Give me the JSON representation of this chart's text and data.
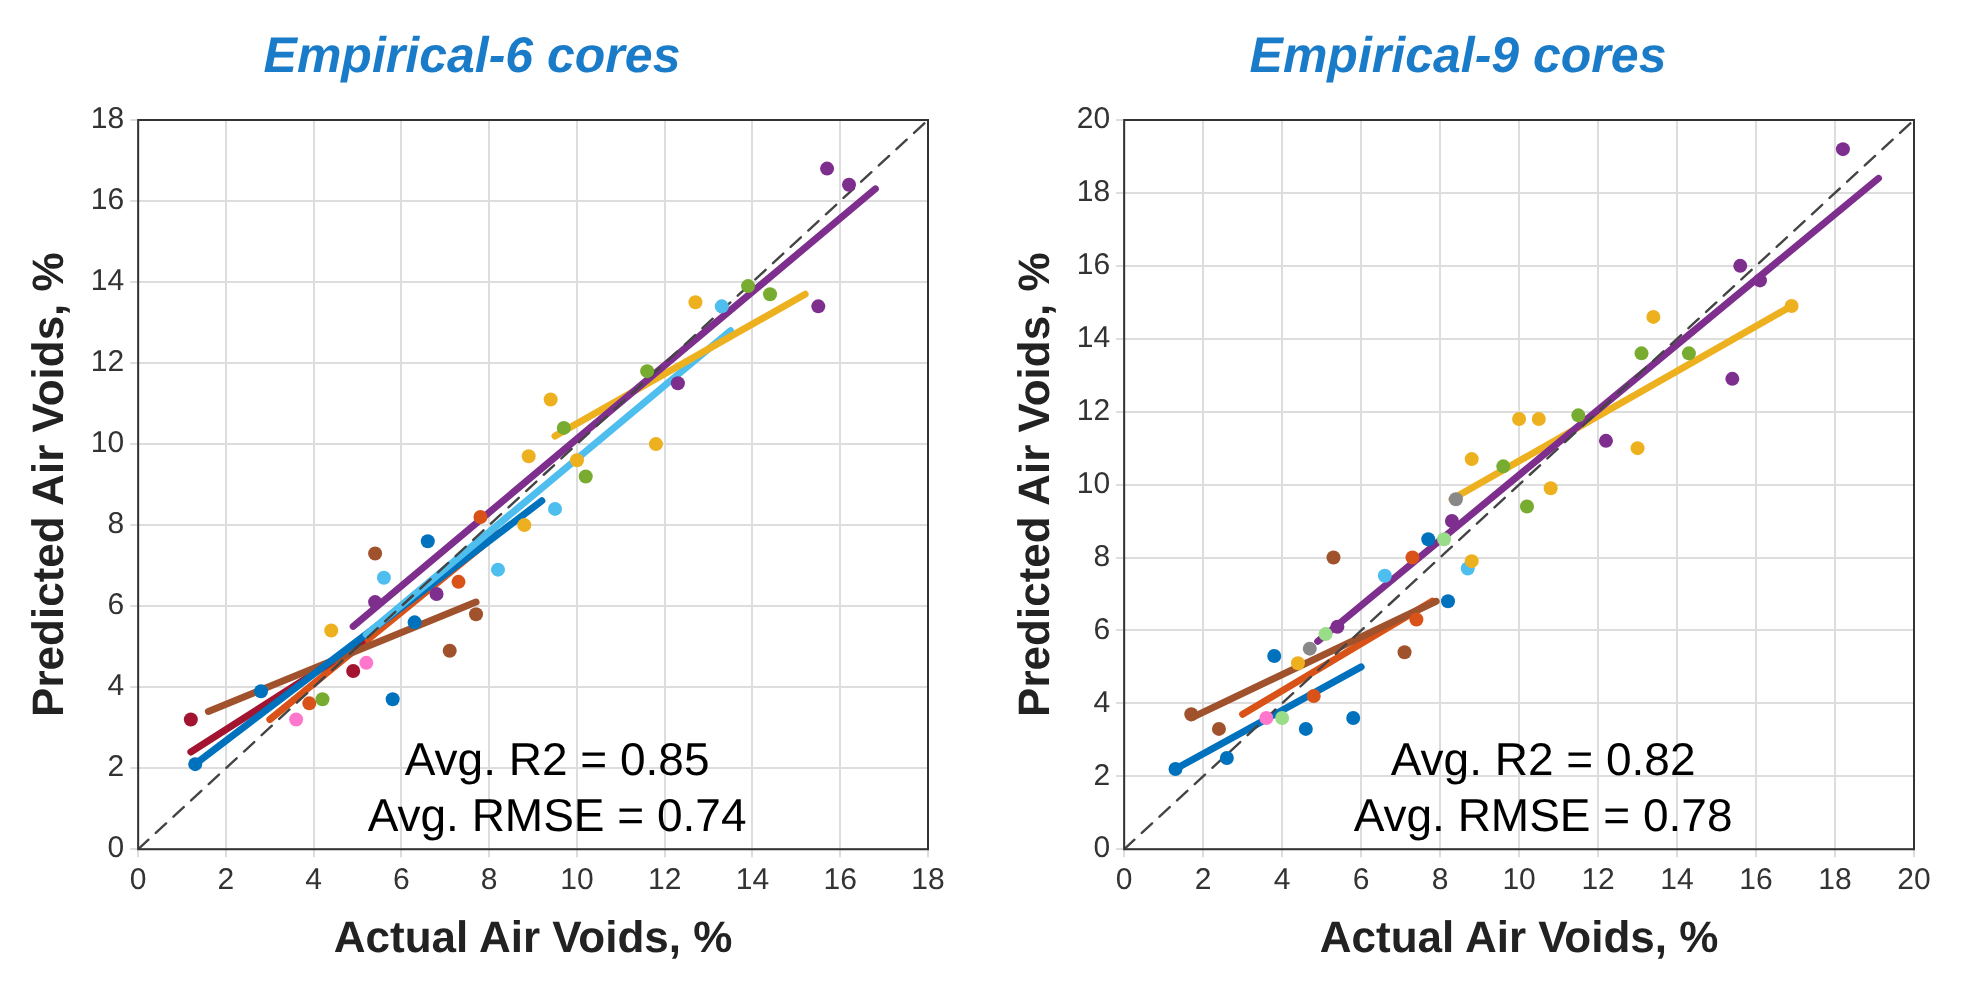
{
  "chart_data": [
    {
      "type": "scatter",
      "title": "Empirical-6 cores",
      "xlabel": "Actual Air Voids, %",
      "ylabel": "Predicted Air Voids, %",
      "xlim": [
        0,
        18
      ],
      "ylim": [
        0,
        18
      ],
      "xticks": [
        0,
        2,
        4,
        6,
        8,
        10,
        12,
        14,
        16,
        18
      ],
      "yticks": [
        0,
        2,
        4,
        6,
        8,
        10,
        12,
        14,
        16,
        18
      ],
      "grid": true,
      "marker": "circle",
      "legend": false,
      "annotations": [
        "Avg. R2 = 0.85",
        "Avg. RMSE = 0.74"
      ],
      "series": [
        {
          "type": "line",
          "color": "#444444",
          "line_style": "dashed",
          "marker": "none",
          "x": [
            0,
            18
          ],
          "values": [
            0,
            18
          ]
        },
        {
          "color": "#7e2f8e",
          "x": [
            15.7,
            16.2,
            15.5,
            12.3,
            6.8,
            5.4
          ],
          "values": [
            16.8,
            16.4,
            13.4,
            11.5,
            6.3,
            6.1
          ]
        },
        {
          "type": "line",
          "color": "#7e2f8e",
          "marker": "none",
          "x": [
            4.9,
            16.8
          ],
          "values": [
            5.5,
            16.3
          ]
        },
        {
          "color": "#edb120",
          "x": [
            12.7,
            9.4,
            8.9,
            11.8,
            8.8,
            4.4,
            10.0
          ],
          "values": [
            13.5,
            11.1,
            9.7,
            10.0,
            8.0,
            5.4,
            9.6
          ]
        },
        {
          "type": "line",
          "color": "#edb120",
          "marker": "none",
          "x": [
            9.5,
            15.2
          ],
          "values": [
            10.2,
            13.7
          ]
        },
        {
          "color": "#77ac30",
          "x": [
            9.7,
            10.2,
            11.6,
            13.9,
            14.4,
            4.2
          ],
          "values": [
            10.4,
            9.2,
            11.8,
            13.9,
            13.7,
            3.7
          ]
        },
        {
          "color": "#4dbeee",
          "x": [
            13.3,
            9.5,
            8.2,
            5.6
          ],
          "values": [
            13.4,
            8.4,
            6.9,
            6.7
          ]
        },
        {
          "type": "line",
          "color": "#4dbeee",
          "marker": "none",
          "x": [
            5.2,
            13.5
          ],
          "values": [
            5.3,
            12.8
          ]
        },
        {
          "color": "#0072bd",
          "x": [
            6.6,
            5.8,
            2.8,
            1.3,
            6.3
          ],
          "values": [
            7.6,
            3.7,
            3.9,
            2.1,
            5.6
          ]
        },
        {
          "type": "line",
          "color": "#0072bd",
          "marker": "none",
          "x": [
            1.3,
            9.2
          ],
          "values": [
            2.1,
            8.6
          ]
        },
        {
          "color": "#a0522d",
          "x": [
            5.4,
            7.1,
            7.7
          ],
          "values": [
            7.3,
            4.9,
            5.8
          ]
        },
        {
          "type": "line",
          "color": "#a0522d",
          "marker": "none",
          "x": [
            1.6,
            7.7
          ],
          "values": [
            3.4,
            6.1
          ]
        },
        {
          "color": "#a2142f",
          "x": [
            1.2,
            4.9
          ],
          "values": [
            3.2,
            4.4
          ]
        },
        {
          "type": "line",
          "color": "#a2142f",
          "marker": "none",
          "x": [
            1.2,
            5.1
          ],
          "values": [
            2.4,
            5.1
          ]
        },
        {
          "color": "#d95319",
          "x": [
            7.8,
            7.3,
            3.9
          ],
          "values": [
            8.2,
            6.6,
            3.6
          ]
        },
        {
          "type": "line",
          "color": "#d95319",
          "marker": "none",
          "x": [
            3.0,
            8.2
          ],
          "values": [
            3.2,
            7.8
          ]
        },
        {
          "color": "#ff77cc",
          "x": [
            3.6,
            5.2
          ],
          "values": [
            3.2,
            4.6
          ]
        }
      ]
    },
    {
      "type": "scatter",
      "title": "Empirical-9 cores",
      "xlabel": "Actual Air Voids, %",
      "ylabel": "Predicted Air Voids, %",
      "xlim": [
        0,
        20
      ],
      "ylim": [
        0,
        20
      ],
      "xticks": [
        0,
        2,
        4,
        6,
        8,
        10,
        12,
        14,
        16,
        18,
        20
      ],
      "yticks": [
        0,
        2,
        4,
        6,
        8,
        10,
        12,
        14,
        16,
        18,
        20
      ],
      "grid": true,
      "marker": "circle",
      "legend": false,
      "annotations": [
        "Avg. R2 = 0.82",
        "Avg. RMSE = 0.78"
      ],
      "series": [
        {
          "type": "line",
          "color": "#444444",
          "line_style": "dashed",
          "marker": "none",
          "x": [
            0,
            20
          ],
          "values": [
            0,
            20
          ]
        },
        {
          "color": "#7e2f8e",
          "x": [
            18.2,
            15.6,
            16.1,
            15.4,
            12.2,
            8.3,
            5.4
          ],
          "values": [
            19.2,
            16.0,
            15.6,
            12.9,
            11.2,
            9.0,
            6.1
          ]
        },
        {
          "type": "line",
          "color": "#7e2f8e",
          "marker": "none",
          "x": [
            4.9,
            19.1
          ],
          "values": [
            5.7,
            18.4
          ]
        },
        {
          "color": "#edb120",
          "x": [
            13.4,
            16.9,
            13.0,
            10.0,
            10.5,
            8.8,
            10.8,
            8.8,
            4.4
          ],
          "values": [
            14.6,
            14.9,
            11.0,
            11.8,
            11.8,
            10.7,
            9.9,
            7.9,
            5.1
          ]
        },
        {
          "type": "line",
          "color": "#edb120",
          "marker": "none",
          "x": [
            8.3,
            16.9
          ],
          "values": [
            9.6,
            14.9
          ]
        },
        {
          "color": "#77ac30",
          "x": [
            13.1,
            14.3,
            11.5,
            9.6,
            10.2
          ],
          "values": [
            13.6,
            13.6,
            11.9,
            10.5,
            9.4
          ]
        },
        {
          "color": "#0072bd",
          "x": [
            7.7,
            8.2,
            3.8,
            5.8,
            4.6,
            1.3,
            2.6
          ],
          "values": [
            8.5,
            6.8,
            5.3,
            3.6,
            3.3,
            2.2,
            2.5
          ]
        },
        {
          "type": "line",
          "color": "#0072bd",
          "marker": "none",
          "x": [
            1.3,
            6.0
          ],
          "values": [
            2.2,
            5.0
          ]
        },
        {
          "color": "#a0522d",
          "x": [
            5.3,
            7.1,
            1.7,
            2.4
          ],
          "values": [
            8.0,
            5.4,
            3.7,
            3.3
          ]
        },
        {
          "type": "line",
          "color": "#a0522d",
          "marker": "none",
          "x": [
            1.7,
            7.9
          ],
          "values": [
            3.6,
            6.8
          ]
        },
        {
          "color": "#d95319",
          "x": [
            7.3,
            7.4,
            4.8
          ],
          "values": [
            8.0,
            6.3,
            4.2
          ]
        },
        {
          "type": "line",
          "color": "#d95319",
          "marker": "none",
          "x": [
            3.0,
            7.8
          ],
          "values": [
            3.7,
            6.8
          ]
        },
        {
          "color": "#4dbeee",
          "x": [
            8.7,
            6.6
          ],
          "values": [
            7.7,
            7.5
          ]
        },
        {
          "color": "#99dd88",
          "x": [
            8.1,
            4.0,
            5.1
          ],
          "values": [
            8.5,
            3.6,
            5.9
          ]
        },
        {
          "color": "#ff77cc",
          "x": [
            3.6
          ],
          "values": [
            3.6
          ]
        },
        {
          "color": "#888888",
          "x": [
            4.7,
            8.4
          ],
          "values": [
            5.5,
            9.6
          ]
        }
      ]
    }
  ]
}
